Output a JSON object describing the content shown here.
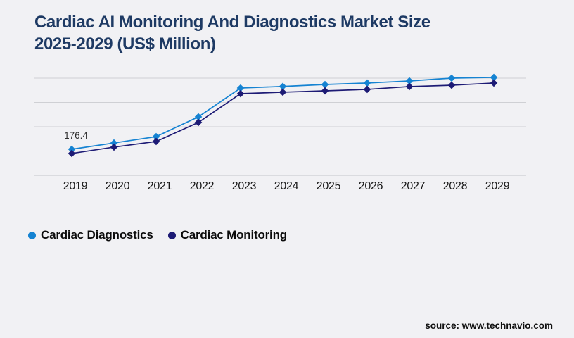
{
  "title": {
    "line1": "Cardiac AI Monitoring And Diagnostics Market Size",
    "line2": "2025-2029 (US$ Million)"
  },
  "source_text": "source: www.technavio.com",
  "legend": {
    "items": [
      {
        "label": "Cardiac Diagnostics",
        "color": "#1583d2"
      },
      {
        "label": "Cardiac Monitoring",
        "color": "#1d1b75"
      }
    ]
  },
  "chart_data": {
    "type": "line",
    "title": "Cardiac AI Monitoring And Diagnostics Market Size 2025-2029 (US$ Million)",
    "x": [
      "2019",
      "2020",
      "2021",
      "2022",
      "2023",
      "2024",
      "2025",
      "2026",
      "2027",
      "2028",
      "2029"
    ],
    "series": [
      {
        "name": "Cardiac Diagnostics",
        "color": "#1583d2",
        "marker": "diamond",
        "values": [
          176.4,
          219,
          262,
          396,
          591,
          602,
          615,
          625,
          639,
          658,
          663
        ]
      },
      {
        "name": "Cardiac Monitoring",
        "color": "#1d1b75",
        "marker": "diamond",
        "values": [
          148,
          191,
          229,
          358,
          553,
          563,
          572,
          582,
          601,
          610,
          625
        ]
      }
    ],
    "annotations": [
      {
        "series": "Cardiac Diagnostics",
        "x": "2019",
        "text": "176.4"
      }
    ],
    "xlabel": "",
    "ylabel": "",
    "ylim": [
      0,
      658
    ],
    "grid": "horizontal",
    "gridline_count": 5,
    "legend_position": "bottom-left"
  },
  "colors": {
    "background": "#f1f1f4",
    "title": "#1e3a64",
    "gridline": "#cfd0d4",
    "axis_line": "#c4c5ca",
    "tick_label": "#191919",
    "annotation": "#2e2e2e",
    "legend_text": "#0c0c0c",
    "source_text": "#101010"
  }
}
